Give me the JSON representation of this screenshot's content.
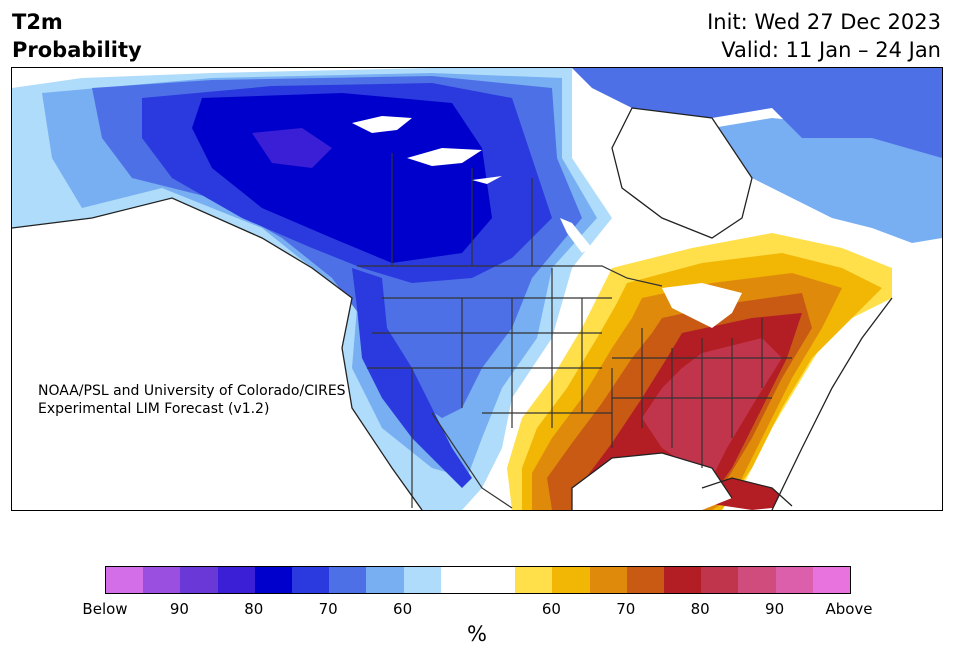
{
  "header": {
    "title_line1": "T2m",
    "title_line2": "Probability",
    "init": "Init: Wed 27 Dec 2023",
    "valid": "Valid: 11 Jan – 24 Jan"
  },
  "credit": {
    "line1": "NOAA/PSL and University of Colorado/CIRES",
    "line2": "Experimental LIM Forecast (v1.2)"
  },
  "colorbar": {
    "colors": [
      "#d46ee8",
      "#9a4fe0",
      "#6b38d8",
      "#3a1fd6",
      "#0000cc",
      "#2a3ade",
      "#4e70e6",
      "#78aef2",
      "#aedcfa",
      "#ffffff",
      "#ffffff",
      "#ffe04a",
      "#f2b705",
      "#e08a0c",
      "#c85a14",
      "#b31e24",
      "#c0344c",
      "#d04c7c",
      "#dc5fac",
      "#e872de"
    ],
    "tick_labels": [
      "Below",
      "90",
      "80",
      "70",
      "60",
      "60",
      "70",
      "80",
      "90",
      "Above"
    ],
    "unit": "%"
  },
  "map": {
    "category_colors": {
      "below_90": "#0000cc",
      "below_80": "#2a3ade",
      "below_70": "#4e70e6",
      "below_60": "#78aef2",
      "below_50": "#aedcfa",
      "neutral": "#ffffff",
      "above_50": "#ffe04a",
      "above_60": "#f2b705",
      "above_70": "#e08a0c",
      "above_80": "#c85a14",
      "above_90": "#b31e24",
      "above_95": "#c0344c"
    }
  }
}
